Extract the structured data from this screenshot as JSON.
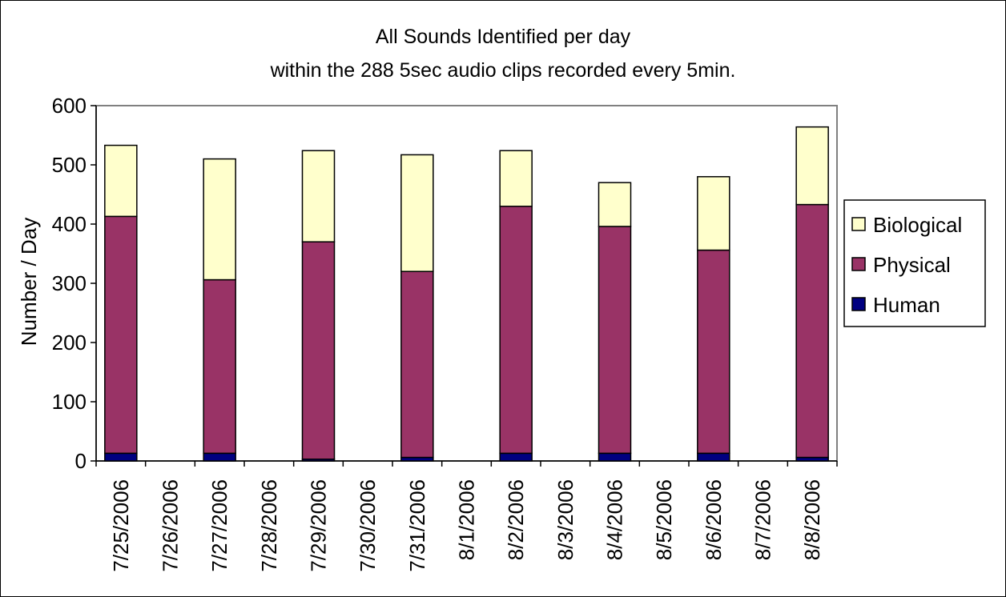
{
  "chart_data": {
    "type": "bar",
    "stacked": true,
    "title": "All Sounds Identified per day",
    "subtitle": "within the 288 5sec audio clips recorded every 5min.",
    "xlabel": "",
    "ylabel": "Number / Day",
    "ylim": [
      0,
      600
    ],
    "yticks": [
      0,
      100,
      200,
      300,
      400,
      500,
      600
    ],
    "grid": false,
    "legend_position": "right",
    "categories": [
      "7/25/2006",
      "7/26/2006",
      "7/27/2006",
      "7/28/2006",
      "7/29/2006",
      "7/30/2006",
      "7/31/2006",
      "8/1/2006",
      "8/2/2006",
      "8/3/2006",
      "8/4/2006",
      "8/5/2006",
      "8/6/2006",
      "8/7/2006",
      "8/8/2006"
    ],
    "series": [
      {
        "name": "Human",
        "color": "#000080",
        "values": [
          13,
          null,
          13,
          null,
          3,
          null,
          6,
          null,
          13,
          null,
          13,
          null,
          13,
          null,
          6
        ]
      },
      {
        "name": "Physical",
        "color": "#993366",
        "values": [
          400,
          null,
          293,
          null,
          367,
          null,
          314,
          null,
          417,
          null,
          383,
          null,
          343,
          null,
          427
        ]
      },
      {
        "name": "Biological",
        "color": "#FFFFCC",
        "values": [
          120,
          null,
          204,
          null,
          154,
          null,
          197,
          null,
          94,
          null,
          74,
          null,
          124,
          null,
          131
        ]
      }
    ]
  }
}
